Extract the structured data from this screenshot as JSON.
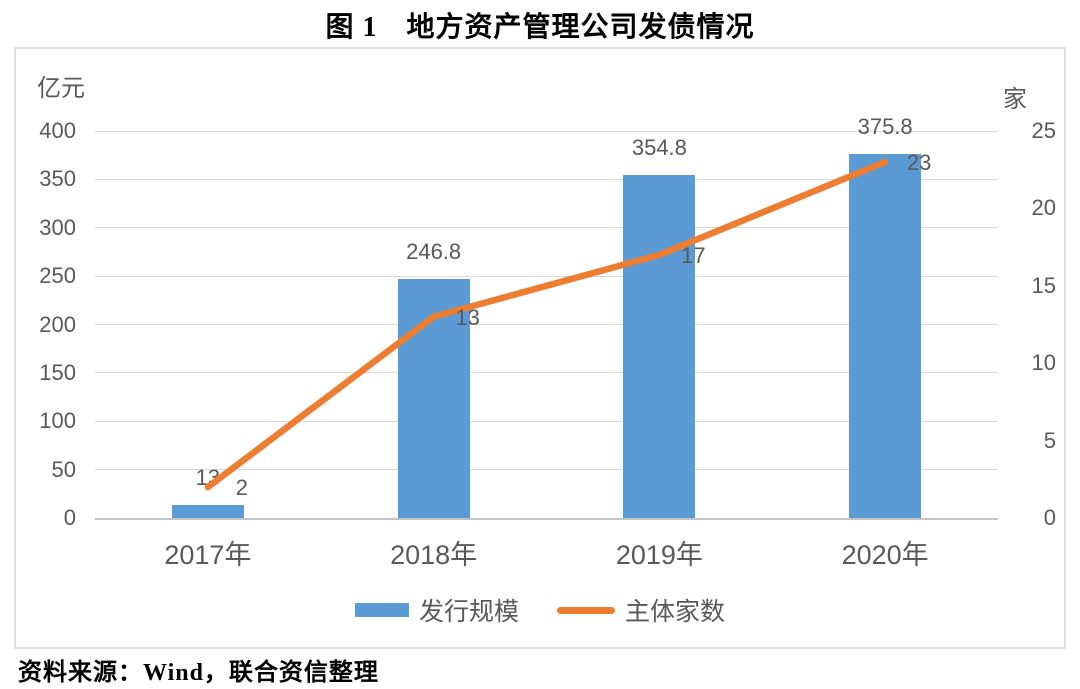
{
  "chart_data": {
    "type": "combo-bar-line",
    "title": "图 1　地方资产管理公司发债情况",
    "source": "资料来源：Wind，联合资信整理",
    "categories": [
      "2017年",
      "2018年",
      "2019年",
      "2020年"
    ],
    "series": [
      {
        "name": "发行规模",
        "chart_type": "bar",
        "axis": "left",
        "color": "#5B9BD5",
        "values": [
          13,
          246.8,
          354.8,
          375.8
        ],
        "data_labels": [
          "13",
          "246.8",
          "354.8",
          "375.8"
        ]
      },
      {
        "name": "主体家数",
        "chart_type": "line",
        "axis": "right",
        "color": "#ED7D31",
        "values": [
          2,
          13,
          17,
          23
        ],
        "data_labels": [
          "2",
          "13",
          "17",
          "23"
        ]
      }
    ],
    "left_axis": {
      "title": "亿元",
      "min": 0,
      "max": 400,
      "step": 50
    },
    "right_axis": {
      "title": "家",
      "min": 0,
      "max": 25,
      "step": 5
    },
    "grid": true,
    "legend_position": "bottom"
  },
  "colors": {
    "bar": "#5B9BD5",
    "line": "#ED7D31",
    "grid": "#D9D9D9",
    "axis_line": "#C4C4C4",
    "label_text": "#595959",
    "frame_border": "#E0E0E0"
  }
}
